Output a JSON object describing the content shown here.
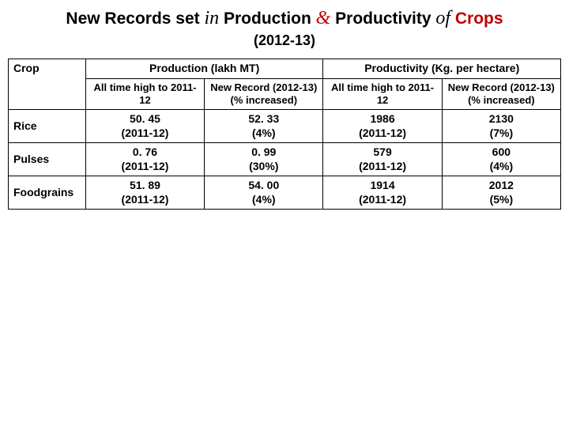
{
  "title": {
    "p1": "New Records set ",
    "p2_italic": "in",
    "p3": " Production ",
    "p4_italic_red": "&",
    "p5": " Productivity ",
    "p6_italic": "of",
    "p7_red": " Crops"
  },
  "subtitle": "(2012-13)",
  "columns": {
    "crop": "Crop",
    "production": "Production (lakh MT)",
    "productivity": "Productivity (Kg. per hectare)",
    "sub_ath": "All time high to 2011-12",
    "sub_new": "New Record (2012-13) (% increased)"
  },
  "rows": [
    {
      "crop": "Rice",
      "prod_ath_val": "50. 45",
      "prod_ath_yr": "(2011-12)",
      "prod_new_val": "52. 33",
      "prod_new_pct": "(4%)",
      "productivity_ath_val": "1986",
      "productivity_ath_yr": "(2011-12)",
      "productivity_new_val": "2130",
      "productivity_new_pct": "(7%)"
    },
    {
      "crop": "Pulses",
      "prod_ath_val": "0. 76",
      "prod_ath_yr": "(2011-12)",
      "prod_new_val": "0. 99",
      "prod_new_pct": "(30%)",
      "productivity_ath_val": "579",
      "productivity_ath_yr": "(2011-12)",
      "productivity_new_val": "600",
      "productivity_new_pct": "(4%)"
    },
    {
      "crop": "Foodgrains",
      "prod_ath_val": "51. 89",
      "prod_ath_yr": "(2011-12)",
      "prod_new_val": "54. 00",
      "prod_new_pct": "(4%)",
      "productivity_ath_val": "1914",
      "productivity_ath_yr": "(2011-12)",
      "productivity_new_val": "2012",
      "productivity_new_pct": "(5%)"
    }
  ]
}
